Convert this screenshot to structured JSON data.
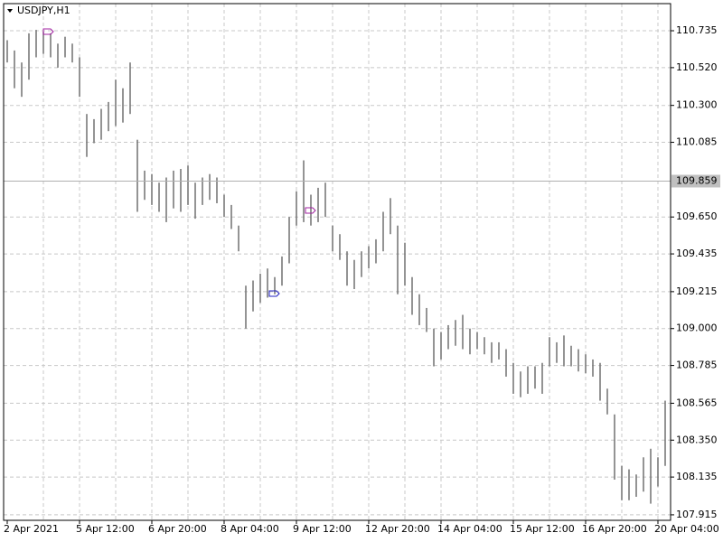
{
  "chart_data": {
    "type": "range",
    "title": "USDJPY,H1",
    "categories": [
      "2 Apr 2021",
      null,
      null,
      null,
      null,
      null,
      null,
      null,
      null,
      null,
      "5 Apr 12:00",
      null,
      null,
      null,
      null,
      null,
      null,
      null,
      null,
      null,
      "6 Apr 20:00",
      null,
      null,
      null,
      null,
      null,
      null,
      null,
      null,
      null,
      "8 Apr 04:00",
      null,
      null,
      null,
      null,
      null,
      null,
      null,
      null,
      null,
      "9 Apr 12:00",
      null,
      null,
      null,
      null,
      null,
      null,
      null,
      null,
      null,
      "12 Apr 20:00",
      null,
      null,
      null,
      null,
      null,
      null,
      null,
      null,
      null,
      "14 Apr 04:00",
      null,
      null,
      null,
      null,
      null,
      null,
      null,
      null,
      null,
      "15 Apr 12:00",
      null,
      null,
      null,
      null,
      null,
      null,
      null,
      null,
      null,
      "16 Apr 20:00",
      null,
      null,
      null,
      null,
      null,
      null,
      null,
      null,
      null,
      "20 Apr 04:00",
      null
    ],
    "series": [
      {
        "name": "High",
        "color": "#707070",
        "values": [
          110.68,
          110.62,
          110.55,
          110.72,
          110.74,
          110.73,
          110.72,
          110.66,
          110.7,
          110.66,
          110.58,
          110.25,
          110.22,
          110.28,
          110.32,
          110.45,
          110.4,
          110.55,
          110.1,
          109.92,
          109.9,
          109.85,
          109.88,
          109.92,
          109.93,
          109.95,
          109.85,
          109.88,
          109.9,
          109.88,
          109.78,
          109.72,
          109.6,
          109.25,
          109.28,
          109.32,
          109.35,
          109.3,
          109.42,
          109.65,
          109.8,
          109.98,
          109.78,
          109.82,
          109.85,
          109.6,
          109.55,
          109.45,
          109.4,
          109.45,
          109.48,
          109.52,
          109.68,
          109.76,
          109.6,
          109.5,
          109.3,
          109.2,
          109.12,
          109.0,
          108.98,
          109.02,
          109.05,
          109.08,
          109.0,
          108.98,
          108.95,
          108.92,
          108.92,
          108.88,
          108.8,
          108.75,
          108.78,
          108.78,
          108.8,
          108.95,
          108.92,
          108.96,
          108.9,
          108.88,
          108.85,
          108.82,
          108.8,
          108.65,
          108.5,
          108.2,
          108.18,
          108.15,
          108.25,
          108.3,
          108.25,
          108.58
        ]
      },
      {
        "name": "Low",
        "color": "#707070",
        "values": [
          110.55,
          110.4,
          110.35,
          110.45,
          110.58,
          110.6,
          110.58,
          110.52,
          110.58,
          110.55,
          110.35,
          110.0,
          110.08,
          110.1,
          110.15,
          110.18,
          110.2,
          110.25,
          109.68,
          109.75,
          109.72,
          109.68,
          109.62,
          109.7,
          109.68,
          109.72,
          109.64,
          109.72,
          109.75,
          109.73,
          109.65,
          109.58,
          109.45,
          109.0,
          109.1,
          109.15,
          109.18,
          109.2,
          109.25,
          109.38,
          109.6,
          109.62,
          109.6,
          109.62,
          109.65,
          109.45,
          109.4,
          109.25,
          109.23,
          109.3,
          109.35,
          109.38,
          109.45,
          109.55,
          109.2,
          109.25,
          109.08,
          109.02,
          108.98,
          108.78,
          108.82,
          108.88,
          108.9,
          108.88,
          108.85,
          108.88,
          108.85,
          108.8,
          108.82,
          108.72,
          108.62,
          108.6,
          108.62,
          108.65,
          108.62,
          108.78,
          108.8,
          108.78,
          108.78,
          108.75,
          108.74,
          108.72,
          108.58,
          108.5,
          108.12,
          108.0,
          108.0,
          108.02,
          108.05,
          107.98,
          108.08,
          108.2
        ]
      }
    ],
    "ylim": [
      107.883,
      110.893
    ],
    "yticks": [
      110.735,
      {
        "value": 110.52,
        "label": "110.520"
      },
      {
        "value": 110.3,
        "label": "110.300"
      },
      110.085,
      {
        "value": 109.65,
        "label": "109.650"
      },
      109.435,
      109.215,
      {
        "value": 109,
        "label": "109.000"
      },
      108.785,
      108.565,
      {
        "value": 108.35,
        "label": "108.350"
      },
      108.135,
      107.915
    ],
    "current_price": 109.859,
    "grid": true
  }
}
